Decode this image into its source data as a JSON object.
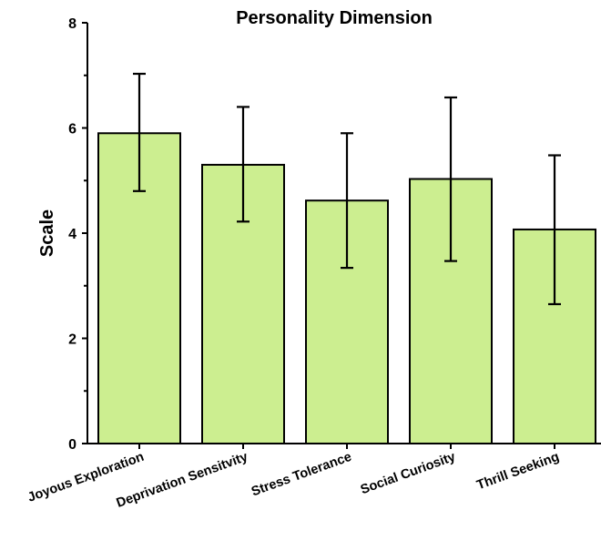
{
  "chart_data": {
    "type": "bar",
    "title": "Personality Dimension",
    "xlabel": "",
    "ylabel": "Scale",
    "ylim": [
      0,
      8
    ],
    "yticks": [
      0,
      2,
      4,
      6,
      8
    ],
    "ytick_labels": [
      "0",
      "2",
      "4",
      "6",
      "8"
    ],
    "categories": [
      "Joyous Exploration",
      "Deprivation Sensitvity",
      "Stress Tolerance",
      "Social Curiosity",
      "Thrill Seeking"
    ],
    "values": [
      5.9,
      5.3,
      4.62,
      5.03,
      4.07
    ],
    "error_low": [
      4.8,
      4.22,
      3.34,
      3.47,
      2.65
    ],
    "error_high": [
      7.03,
      6.4,
      5.9,
      6.58,
      5.48
    ],
    "bar_color": "#ccee90",
    "edge_color": "#000000",
    "grid": false,
    "legend": "none"
  }
}
